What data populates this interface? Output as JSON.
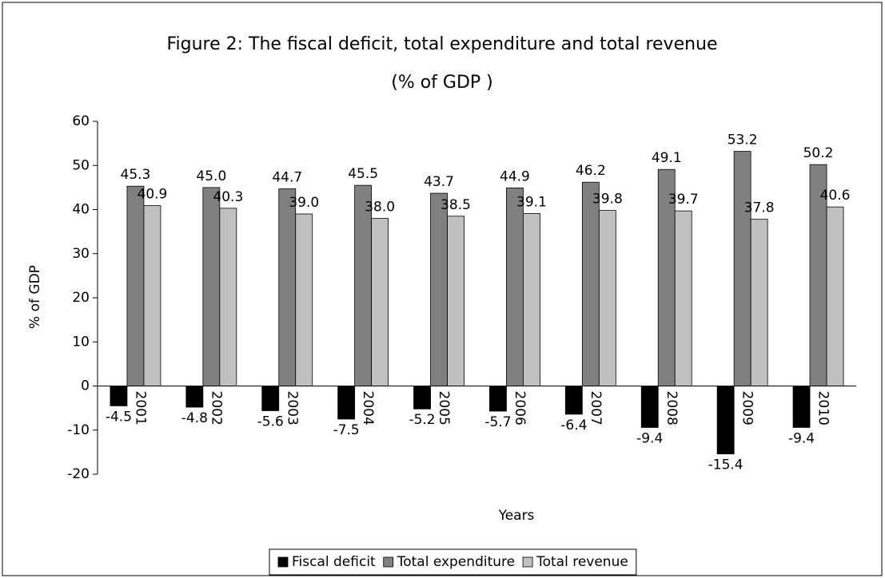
{
  "chart_data": {
    "type": "bar",
    "title": "Figure 2: The fiscal deficit, total expenditure and total revenue",
    "subtitle": "(% of GDP )",
    "x_label": "Years",
    "y_label": "% of GDP",
    "categories": [
      "2001",
      "2002",
      "2003",
      "2004",
      "2005",
      "2006",
      "2007",
      "2008",
      "2009",
      "2010"
    ],
    "series": [
      {
        "name": "Fiscal deficit",
        "color": "#000000",
        "values": [
          -4.5,
          -4.8,
          -5.6,
          -7.5,
          -5.2,
          -5.7,
          -6.4,
          -9.4,
          -15.4,
          -9.4
        ]
      },
      {
        "name": "Total expenditure",
        "color": "#808080",
        "values": [
          45.3,
          45.0,
          44.7,
          45.5,
          43.7,
          44.9,
          46.2,
          49.1,
          53.2,
          50.2
        ],
        "value_labels": [
          "45.3",
          "45.0",
          "44.7",
          "45.5",
          "43.7",
          "44.9",
          "46.2",
          "49.1",
          "53.2",
          "50.2"
        ]
      },
      {
        "name": "Total revenue",
        "color": "#c0c0c0",
        "values": [
          40.9,
          40.3,
          39.0,
          38.0,
          38.5,
          39.1,
          39.8,
          39.7,
          37.8,
          40.6
        ],
        "value_labels": [
          "40.9",
          "40.3",
          "39.0",
          "38.0",
          "38.5",
          "39.1",
          "39.8",
          "39.7",
          "37.8",
          "40.6"
        ]
      }
    ],
    "ylim": [
      -20,
      60
    ],
    "yticks": [
      -20,
      -10,
      0,
      10,
      20,
      30,
      40,
      50,
      60
    ],
    "legend": "bottom"
  }
}
